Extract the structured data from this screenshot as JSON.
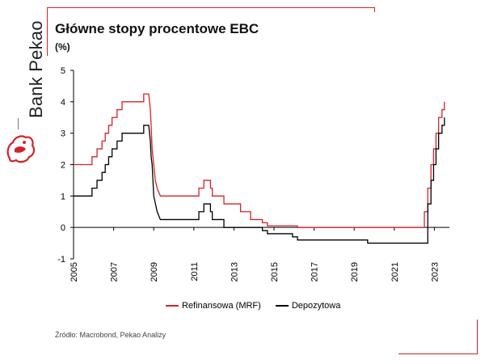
{
  "brand": {
    "name": "Bank Pekao",
    "logo_icon": "pekao-bison-icon",
    "accent_color": "#d2232a"
  },
  "chart_data": {
    "type": "line",
    "title": "Główne stopy procentowe EBC",
    "subtitle": "(%)",
    "xlabel": "",
    "ylabel": "",
    "xlim": [
      2005.0,
      2023.75
    ],
    "ylim": [
      -1,
      5
    ],
    "y_ticks": [
      "5",
      "4",
      "3",
      "2",
      "1",
      "0",
      "-1"
    ],
    "x_ticks": [
      "2005",
      "2007",
      "2009",
      "2011",
      "2013",
      "2015",
      "2017",
      "2019",
      "2021",
      "2023"
    ],
    "grid": false,
    "legend_position": "bottom",
    "series": [
      {
        "name": "Refinansowa (MRF)",
        "color": "#d2232a",
        "points": [
          [
            2005.0,
            2.0
          ],
          [
            2005.92,
            2.0
          ],
          [
            2005.92,
            2.25
          ],
          [
            2006.17,
            2.25
          ],
          [
            2006.17,
            2.5
          ],
          [
            2006.42,
            2.5
          ],
          [
            2006.42,
            2.75
          ],
          [
            2006.58,
            2.75
          ],
          [
            2006.58,
            3.0
          ],
          [
            2006.75,
            3.0
          ],
          [
            2006.75,
            3.25
          ],
          [
            2006.92,
            3.25
          ],
          [
            2006.92,
            3.5
          ],
          [
            2007.17,
            3.5
          ],
          [
            2007.17,
            3.75
          ],
          [
            2007.42,
            3.75
          ],
          [
            2007.42,
            4.0
          ],
          [
            2008.5,
            4.0
          ],
          [
            2008.5,
            4.25
          ],
          [
            2008.75,
            4.25
          ],
          [
            2008.83,
            3.75
          ],
          [
            2008.87,
            3.25
          ],
          [
            2008.92,
            2.5
          ],
          [
            2009.0,
            2.0
          ],
          [
            2009.08,
            1.5
          ],
          [
            2009.17,
            1.25
          ],
          [
            2009.33,
            1.0
          ],
          [
            2011.25,
            1.0
          ],
          [
            2011.25,
            1.25
          ],
          [
            2011.5,
            1.25
          ],
          [
            2011.5,
            1.5
          ],
          [
            2011.83,
            1.5
          ],
          [
            2011.83,
            1.25
          ],
          [
            2011.92,
            1.25
          ],
          [
            2011.92,
            1.0
          ],
          [
            2012.5,
            1.0
          ],
          [
            2012.5,
            0.75
          ],
          [
            2013.33,
            0.75
          ],
          [
            2013.33,
            0.5
          ],
          [
            2013.83,
            0.5
          ],
          [
            2013.83,
            0.25
          ],
          [
            2014.42,
            0.25
          ],
          [
            2014.42,
            0.15
          ],
          [
            2014.67,
            0.15
          ],
          [
            2014.67,
            0.05
          ],
          [
            2016.17,
            0.05
          ],
          [
            2016.17,
            0.0
          ],
          [
            2022.5,
            0.0
          ],
          [
            2022.5,
            0.5
          ],
          [
            2022.67,
            0.5
          ],
          [
            2022.67,
            1.25
          ],
          [
            2022.83,
            1.25
          ],
          [
            2022.83,
            2.0
          ],
          [
            2022.96,
            2.0
          ],
          [
            2022.96,
            2.5
          ],
          [
            2023.08,
            2.5
          ],
          [
            2023.08,
            3.0
          ],
          [
            2023.21,
            3.0
          ],
          [
            2023.21,
            3.5
          ],
          [
            2023.38,
            3.5
          ],
          [
            2023.38,
            3.75
          ],
          [
            2023.5,
            3.75
          ],
          [
            2023.5,
            4.0
          ]
        ]
      },
      {
        "name": "Depozytowa",
        "color": "#000000",
        "points": [
          [
            2005.0,
            1.0
          ],
          [
            2005.92,
            1.0
          ],
          [
            2005.92,
            1.25
          ],
          [
            2006.17,
            1.25
          ],
          [
            2006.17,
            1.5
          ],
          [
            2006.42,
            1.5
          ],
          [
            2006.42,
            1.75
          ],
          [
            2006.58,
            1.75
          ],
          [
            2006.58,
            2.0
          ],
          [
            2006.75,
            2.0
          ],
          [
            2006.75,
            2.25
          ],
          [
            2006.92,
            2.25
          ],
          [
            2006.92,
            2.5
          ],
          [
            2007.17,
            2.5
          ],
          [
            2007.17,
            2.75
          ],
          [
            2007.42,
            2.75
          ],
          [
            2007.42,
            3.0
          ],
          [
            2008.5,
            3.0
          ],
          [
            2008.5,
            3.25
          ],
          [
            2008.75,
            3.25
          ],
          [
            2008.83,
            2.75
          ],
          [
            2008.87,
            2.25
          ],
          [
            2008.92,
            2.0
          ],
          [
            2009.0,
            1.0
          ],
          [
            2009.17,
            0.5
          ],
          [
            2009.33,
            0.25
          ],
          [
            2011.25,
            0.25
          ],
          [
            2011.25,
            0.5
          ],
          [
            2011.5,
            0.5
          ],
          [
            2011.5,
            0.75
          ],
          [
            2011.83,
            0.75
          ],
          [
            2011.83,
            0.5
          ],
          [
            2011.92,
            0.5
          ],
          [
            2011.92,
            0.25
          ],
          [
            2012.5,
            0.25
          ],
          [
            2012.5,
            0.0
          ],
          [
            2014.42,
            0.0
          ],
          [
            2014.42,
            -0.1
          ],
          [
            2014.67,
            -0.1
          ],
          [
            2014.67,
            -0.2
          ],
          [
            2015.92,
            -0.2
          ],
          [
            2015.92,
            -0.3
          ],
          [
            2016.17,
            -0.3
          ],
          [
            2016.17,
            -0.4
          ],
          [
            2019.67,
            -0.4
          ],
          [
            2019.67,
            -0.5
          ],
          [
            2022.5,
            -0.5
          ],
          [
            2022.67,
            -0.5
          ],
          [
            2022.67,
            0.75
          ],
          [
            2022.83,
            0.75
          ],
          [
            2022.83,
            1.5
          ],
          [
            2022.96,
            1.5
          ],
          [
            2022.96,
            2.0
          ],
          [
            2023.08,
            2.0
          ],
          [
            2023.08,
            2.5
          ],
          [
            2023.21,
            2.5
          ],
          [
            2023.21,
            3.0
          ],
          [
            2023.38,
            3.0
          ],
          [
            2023.38,
            3.25
          ],
          [
            2023.5,
            3.25
          ],
          [
            2023.5,
            3.5
          ]
        ]
      }
    ]
  },
  "source": "Źródło: Macrobond, Pekao Analizy"
}
